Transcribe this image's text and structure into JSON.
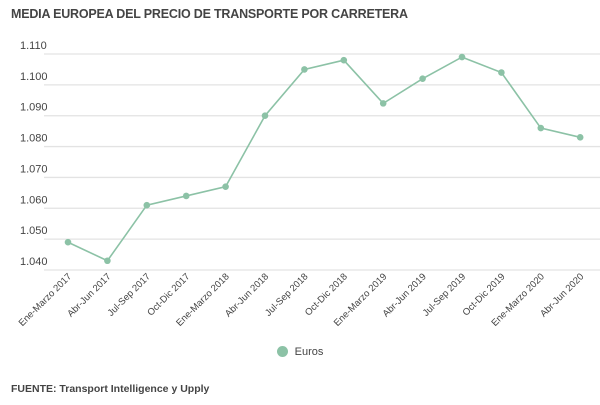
{
  "chart_data": {
    "type": "line",
    "title": "MEDIA EUROPEA DEL PRECIO DE TRANSPORTE POR CARRETERA",
    "categories": [
      "Ene-Marzo 2017",
      "Abr-Jun 2017",
      "Jul-Sep 2017",
      "Oct-Dic 2017",
      "Ene-Marzo 2018",
      "Abr-Jun 2018",
      "Jul-Sep 2018",
      "Oct-Dic 2018",
      "Ene-Marzo 2019",
      "Abr-Jun 2019",
      "Jul-Sep 2019",
      "Oct-Dic 2019",
      "Ene-Marzo 2020",
      "Abr-Jun 2020"
    ],
    "series": [
      {
        "name": "Euros",
        "color": "#8cc2a6",
        "values": [
          1.049,
          1.043,
          1.061,
          1.064,
          1.067,
          1.09,
          1.105,
          1.108,
          1.094,
          1.102,
          1.109,
          1.104,
          1.086,
          1.083
        ]
      }
    ],
    "ylim": [
      1.04,
      1.11
    ],
    "yticks": [
      "1.040",
      "1.050",
      "1.060",
      "1.070",
      "1.080",
      "1.090",
      "1.100",
      "1.110"
    ],
    "xlabel": "",
    "ylabel": "",
    "grid": true,
    "legend": "bottom-center",
    "source": "FUENTE: Transport Intelligence y Upply"
  }
}
